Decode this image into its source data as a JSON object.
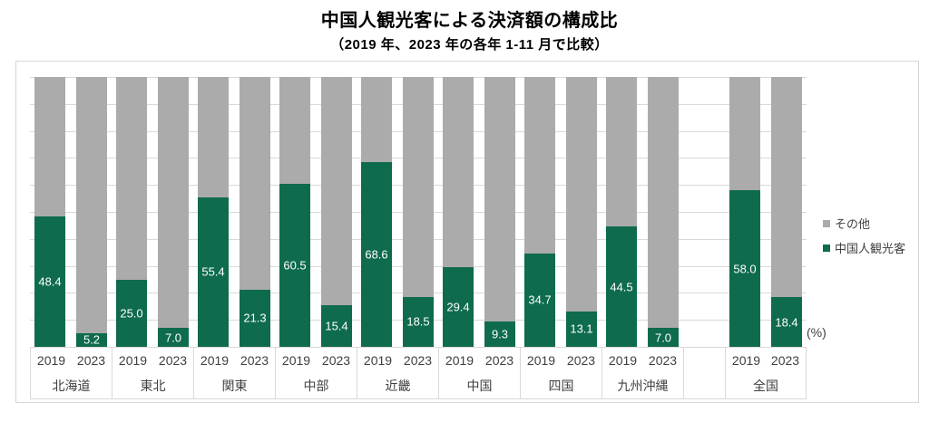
{
  "title": "中国人観光客による決済額の構成比",
  "subtitle": "（2019 年、2023 年の各年 1-11 月で比較）",
  "unit_label": "(%)",
  "colors": {
    "green": "#0e6b4e",
    "gray": "#ababab",
    "grid": "#d9d9d9",
    "border": "#d6d6d6",
    "axis_text": "#3f3f3f"
  },
  "legend": [
    {
      "label": "その他",
      "color": "#ababab"
    },
    {
      "label": "中国人観光客",
      "color": "#0e6b4e"
    }
  ],
  "chart_data": {
    "type": "bar",
    "stacked": true,
    "title": "中国人観光客による決済額の構成比",
    "subtitle": "（2019 年、2023 年の各年 1-11 月で比較）",
    "value_unit": "%",
    "ylim": [
      0,
      100
    ],
    "grid_step": 10,
    "grid": true,
    "legend_position": "right",
    "series_names": [
      "中国人観光客",
      "その他"
    ],
    "other_series_note": "100 minus shown value",
    "year_labels": [
      "2019",
      "2023"
    ],
    "groups": [
      {
        "region": "北海道",
        "bars": [
          {
            "year": "2019",
            "value": "48.4"
          },
          {
            "year": "2023",
            "value": "5.2"
          }
        ]
      },
      {
        "region": "東北",
        "bars": [
          {
            "year": "2019",
            "value": "25.0"
          },
          {
            "year": "2023",
            "value": "7.0"
          }
        ]
      },
      {
        "region": "関東",
        "bars": [
          {
            "year": "2019",
            "value": "55.4"
          },
          {
            "year": "2023",
            "value": "21.3"
          }
        ]
      },
      {
        "region": "中部",
        "bars": [
          {
            "year": "2019",
            "value": "60.5"
          },
          {
            "year": "2023",
            "value": "15.4"
          }
        ]
      },
      {
        "region": "近畿",
        "bars": [
          {
            "year": "2019",
            "value": "68.6"
          },
          {
            "year": "2023",
            "value": "18.5"
          }
        ]
      },
      {
        "region": "中国",
        "bars": [
          {
            "year": "2019",
            "value": "29.4"
          },
          {
            "year": "2023",
            "value": "9.3"
          }
        ]
      },
      {
        "region": "四国",
        "bars": [
          {
            "year": "2019",
            "value": "34.7"
          },
          {
            "year": "2023",
            "value": "13.1"
          }
        ]
      },
      {
        "region": "九州沖縄",
        "bars": [
          {
            "year": "2019",
            "value": "44.5"
          },
          {
            "year": "2023",
            "value": "7.0"
          }
        ]
      },
      {
        "region": "",
        "bars": [],
        "spacer": true
      },
      {
        "region": "全国",
        "bars": [
          {
            "year": "2019",
            "value": "58.0"
          },
          {
            "year": "2023",
            "value": "18.4"
          }
        ]
      }
    ]
  }
}
